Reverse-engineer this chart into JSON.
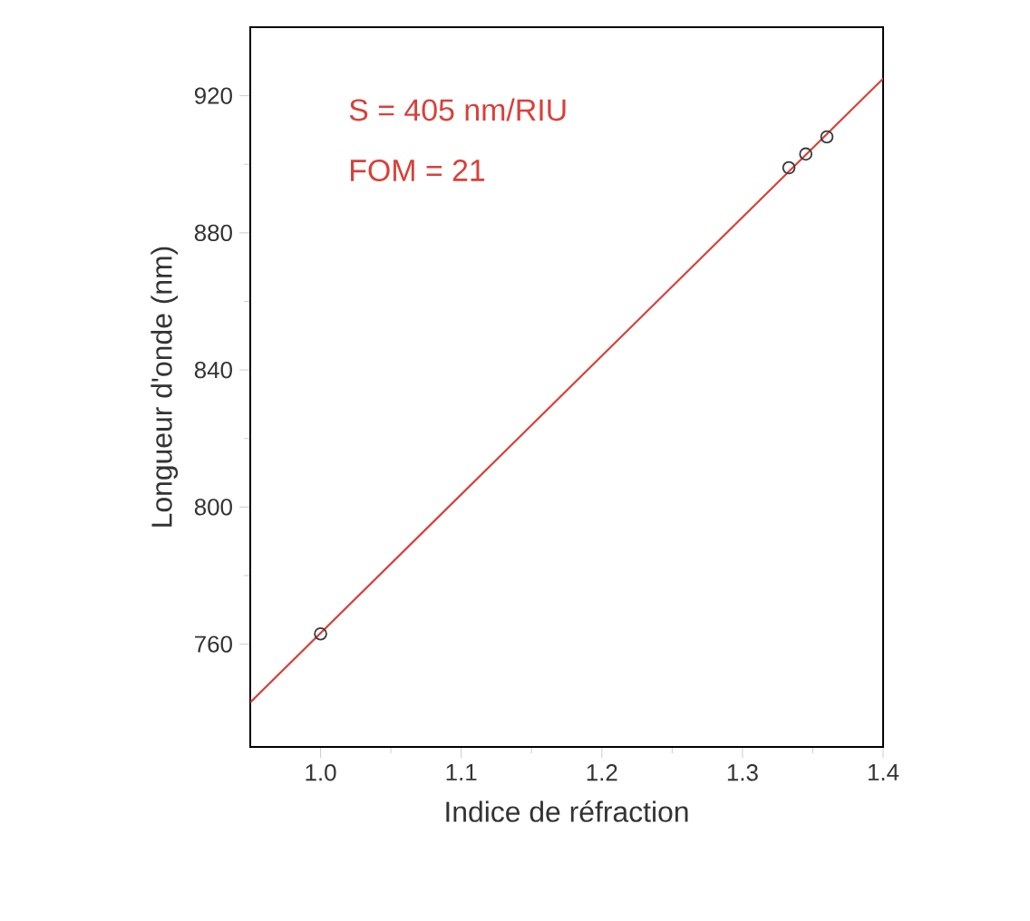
{
  "chart_data": {
    "type": "scatter",
    "xlabel": "Indice de réfraction",
    "ylabel": "Longueur d'onde (nm)",
    "xlim": [
      0.95,
      1.4
    ],
    "ylim": [
      730,
      940
    ],
    "xticks": [
      {
        "value": 1.0,
        "label": "1.0"
      },
      1.1,
      1.2,
      1.3,
      1.4
    ],
    "yticks": [
      760,
      800,
      840,
      880,
      920
    ],
    "series": [
      {
        "marker": "circle",
        "color": "#3a3a3a",
        "x": [
          1.0,
          1.333,
          1.345,
          1.36
        ],
        "values": [
          763,
          899,
          903,
          908
        ]
      },
      {
        "type": "line",
        "color": "#d9403a",
        "x": [
          0.95,
          1.4
        ],
        "values": [
          743,
          925
        ]
      }
    ],
    "annotations": [
      "S = 405 nm/RIU",
      "FOM = 21"
    ]
  }
}
